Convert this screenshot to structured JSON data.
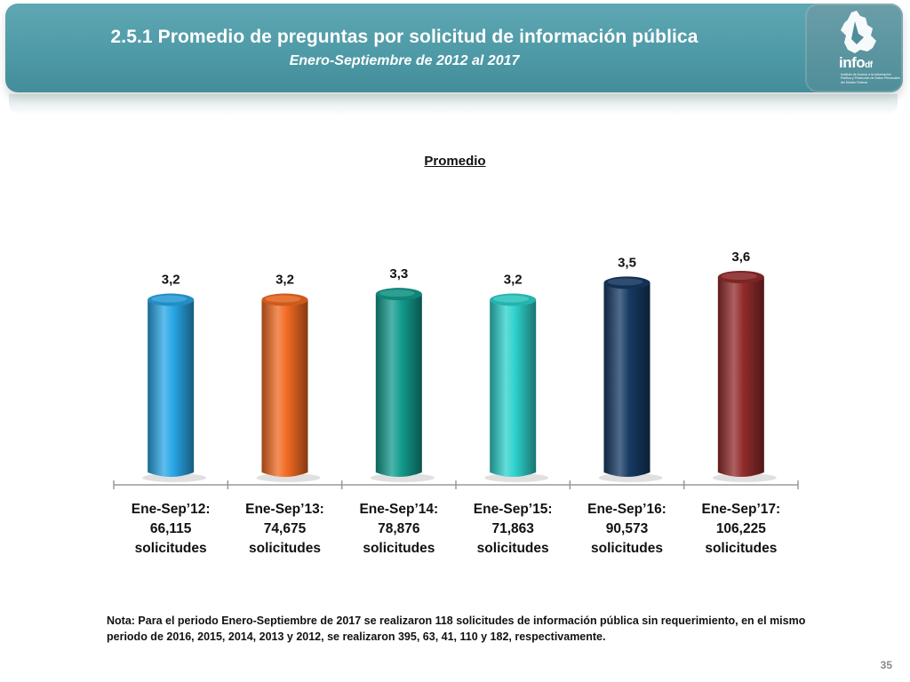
{
  "header": {
    "title": "2.5.1 Promedio de preguntas por solicitud de información pública",
    "subtitle": "Enero-Septiembre de 2012 al 2017"
  },
  "logo": {
    "name": "info",
    "suffix": "df",
    "caption": "Instituto de Acceso a la Información Pública y Protección de Datos Personales del Distrito Federal"
  },
  "chart_data": {
    "type": "bar",
    "title": "Promedio",
    "categories": [
      [
        "Ene-Sep’12:",
        "66,115",
        "solicitudes"
      ],
      [
        "Ene-Sep’13:",
        "74,675",
        "solicitudes"
      ],
      [
        "Ene-Sep’14:",
        "78,876",
        "solicitudes"
      ],
      [
        "Ene-Sep’15:",
        "71,863",
        "solicitudes"
      ],
      [
        "Ene-Sep’16:",
        "90,573",
        "solicitudes"
      ],
      [
        "Ene-Sep’17:",
        "106,225",
        "solicitudes"
      ]
    ],
    "values": [
      3.2,
      3.2,
      3.3,
      3.2,
      3.5,
      3.6
    ],
    "value_labels": [
      "3,2",
      "3,2",
      "3,3",
      "3,2",
      "3,5",
      "3,6"
    ],
    "colors": [
      "#29a6e6",
      "#f26a22",
      "#139b8d",
      "#2ed1cc",
      "#163a63",
      "#922b2b"
    ],
    "ylim": [
      0,
      3.6
    ]
  },
  "note": "Nota: Para el periodo Enero-Septiembre de 2017 se realizaron 118 solicitudes de información pública sin requerimiento, en el mismo periodo de 2016, 2015, 2014, 2013 y 2012, se realizaron 395, 63, 41, 110 y 182, respectivamente.",
  "page_number": "35"
}
